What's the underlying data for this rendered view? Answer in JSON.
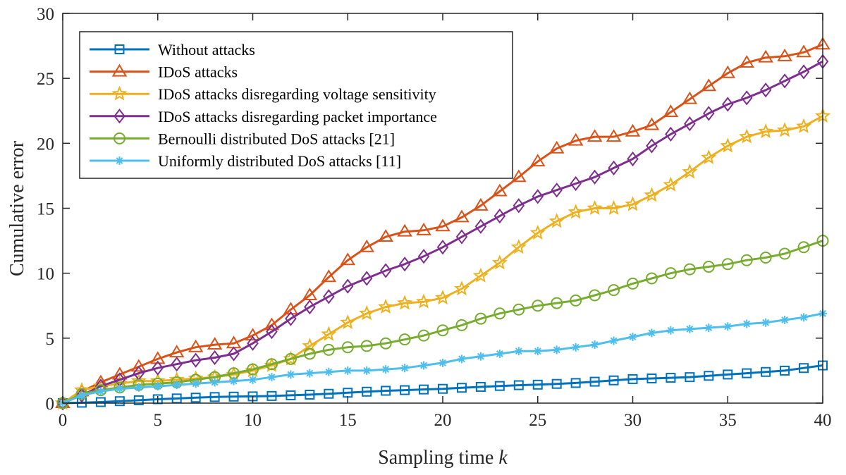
{
  "chart_data": {
    "type": "line",
    "title": "",
    "xlabel": "Sampling time",
    "xlabel_var": "k",
    "ylabel": "Cumulative error",
    "xlim": [
      0,
      40
    ],
    "ylim": [
      0,
      30
    ],
    "x_ticks": [
      "0",
      "5",
      "10",
      "15",
      "20",
      "25",
      "30",
      "35",
      "40"
    ],
    "y_ticks": [
      "0",
      "5",
      "10",
      "15",
      "20",
      "25",
      "30"
    ],
    "grid": false,
    "legend_position": "top-left",
    "x": [
      0,
      1,
      2,
      3,
      4,
      5,
      6,
      7,
      8,
      9,
      10,
      11,
      12,
      13,
      14,
      15,
      16,
      17,
      18,
      19,
      20,
      21,
      22,
      23,
      24,
      25,
      26,
      27,
      28,
      29,
      30,
      31,
      32,
      33,
      34,
      35,
      36,
      37,
      38,
      39,
      40
    ],
    "series": [
      {
        "name": "Without attacks",
        "color": "#0072BD",
        "marker": "square",
        "values": [
          0,
          0.03,
          0.08,
          0.15,
          0.22,
          0.3,
          0.36,
          0.42,
          0.47,
          0.5,
          0.52,
          0.55,
          0.6,
          0.65,
          0.72,
          0.8,
          0.88,
          0.95,
          1.0,
          1.05,
          1.1,
          1.18,
          1.25,
          1.32,
          1.38,
          1.42,
          1.48,
          1.55,
          1.65,
          1.75,
          1.85,
          1.9,
          1.95,
          2.0,
          2.1,
          2.2,
          2.3,
          2.4,
          2.5,
          2.7,
          2.9
        ]
      },
      {
        "name": "IDoS attacks",
        "color": "#D95319",
        "marker": "triangle",
        "values": [
          0,
          0.9,
          1.6,
          2.2,
          2.8,
          3.4,
          3.9,
          4.3,
          4.5,
          4.6,
          5.2,
          6.0,
          7.2,
          8.3,
          9.7,
          11.0,
          12.0,
          12.8,
          13.2,
          13.3,
          13.6,
          14.3,
          15.2,
          16.3,
          17.4,
          18.6,
          19.6,
          20.2,
          20.5,
          20.5,
          20.9,
          21.4,
          22.4,
          23.4,
          24.4,
          25.4,
          26.2,
          26.6,
          26.7,
          27.0,
          27.6
        ]
      },
      {
        "name": "IDoS attacks disregarding voltage sensitivity",
        "color": "#EDB120",
        "marker": "star",
        "values": [
          0,
          1.0,
          1.3,
          1.5,
          1.7,
          1.7,
          1.8,
          1.9,
          2.0,
          2.2,
          2.5,
          2.9,
          3.4,
          4.4,
          5.3,
          6.2,
          6.9,
          7.4,
          7.7,
          7.8,
          8.1,
          8.8,
          9.8,
          10.8,
          12.0,
          13.1,
          14.0,
          14.7,
          15.0,
          15.0,
          15.3,
          16.0,
          16.8,
          17.8,
          18.9,
          19.8,
          20.5,
          20.9,
          21.0,
          21.3,
          22.1
        ]
      },
      {
        "name": "IDoS attacks disregarding packet importance",
        "color": "#7E2F8E",
        "marker": "diamond",
        "values": [
          0,
          0.6,
          1.3,
          1.8,
          2.3,
          2.7,
          3.0,
          3.3,
          3.5,
          3.8,
          4.6,
          5.5,
          6.5,
          7.4,
          8.2,
          9.0,
          9.6,
          10.2,
          10.7,
          11.3,
          12.0,
          12.8,
          13.6,
          14.4,
          15.2,
          15.9,
          16.4,
          16.9,
          17.4,
          18.1,
          18.8,
          19.8,
          20.7,
          21.5,
          22.3,
          23.0,
          23.5,
          24.1,
          24.8,
          25.5,
          26.3
        ]
      },
      {
        "name": "Bernoulli distributed DoS attacks [21]",
        "color": "#77AC30",
        "marker": "circle",
        "values": [
          0,
          0.7,
          1.0,
          1.2,
          1.4,
          1.5,
          1.6,
          1.8,
          2.0,
          2.3,
          2.6,
          3.0,
          3.4,
          3.8,
          4.1,
          4.3,
          4.4,
          4.6,
          4.9,
          5.2,
          5.6,
          6.0,
          6.5,
          6.9,
          7.2,
          7.5,
          7.7,
          7.9,
          8.3,
          8.7,
          9.2,
          9.6,
          10.0,
          10.3,
          10.5,
          10.7,
          11.0,
          11.2,
          11.5,
          12.0,
          12.5
        ]
      },
      {
        "name": "Uniformly distributed DoS attacks [11]",
        "color": "#4DBEEE",
        "marker": "asterisk",
        "values": [
          0,
          0.6,
          0.9,
          1.1,
          1.2,
          1.3,
          1.4,
          1.5,
          1.6,
          1.7,
          1.8,
          2.0,
          2.2,
          2.3,
          2.4,
          2.5,
          2.5,
          2.6,
          2.7,
          2.9,
          3.1,
          3.4,
          3.6,
          3.8,
          4.0,
          4.0,
          4.1,
          4.3,
          4.5,
          4.8,
          5.1,
          5.4,
          5.6,
          5.7,
          5.8,
          5.9,
          6.1,
          6.2,
          6.4,
          6.6,
          6.9
        ]
      }
    ]
  }
}
